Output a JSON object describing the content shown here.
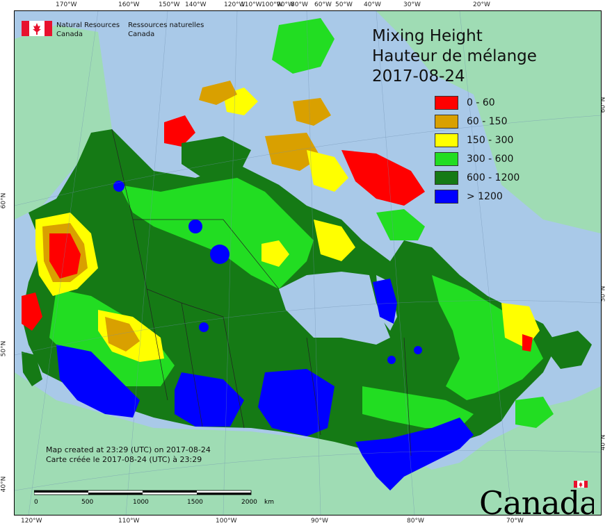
{
  "agency": {
    "name_en_1": "Natural Resources",
    "name_en_2": "Canada",
    "name_fr_1": "Ressources naturelles",
    "name_fr_2": "Canada"
  },
  "title": {
    "line1": "Mixing Height",
    "line2": "Hauteur de mélange",
    "date": "2017-08-24"
  },
  "legend": [
    {
      "label": "0 - 60",
      "color": "#ff0000"
    },
    {
      "label": "60 - 150",
      "color": "#d9a000"
    },
    {
      "label": "150 - 300",
      "color": "#ffff00"
    },
    {
      "label": "300 - 600",
      "color": "#22dd22"
    },
    {
      "label": "600 - 1200",
      "color": "#157a15"
    },
    {
      "label": "> 1200",
      "color": "#0000ff"
    }
  ],
  "created": {
    "en": "Map created at 23:29 (UTC) on 2017-08-24",
    "fr": "Carte créée le 2017-08-24 (UTC) à 23:29"
  },
  "scale": {
    "ticks": [
      "0",
      "500",
      "1000",
      "1500",
      "2000"
    ],
    "unit": "km"
  },
  "top_lon_labels": [
    "170°W",
    "160°W",
    "150°W",
    "140°W",
    "120°W",
    "110°W",
    "100°W",
    "90°W",
    "80°W",
    "60°W",
    "50°W",
    "40°W",
    "30°W",
    "20°W"
  ],
  "bottom_lon_labels": [
    "120°W",
    "110°W",
    "100°W",
    "90°W",
    "80°W",
    "70°W"
  ],
  "left_lat_labels": [
    "60°N",
    "50°N",
    "40°N"
  ],
  "right_lat_labels": [
    "60°N",
    "50°N",
    "40°N"
  ],
  "wordmark": "Canada",
  "colors": {
    "ocean": "#a9c9e8",
    "foreign_land": "#9fdcb4",
    "flag_red": "#e8112d"
  }
}
